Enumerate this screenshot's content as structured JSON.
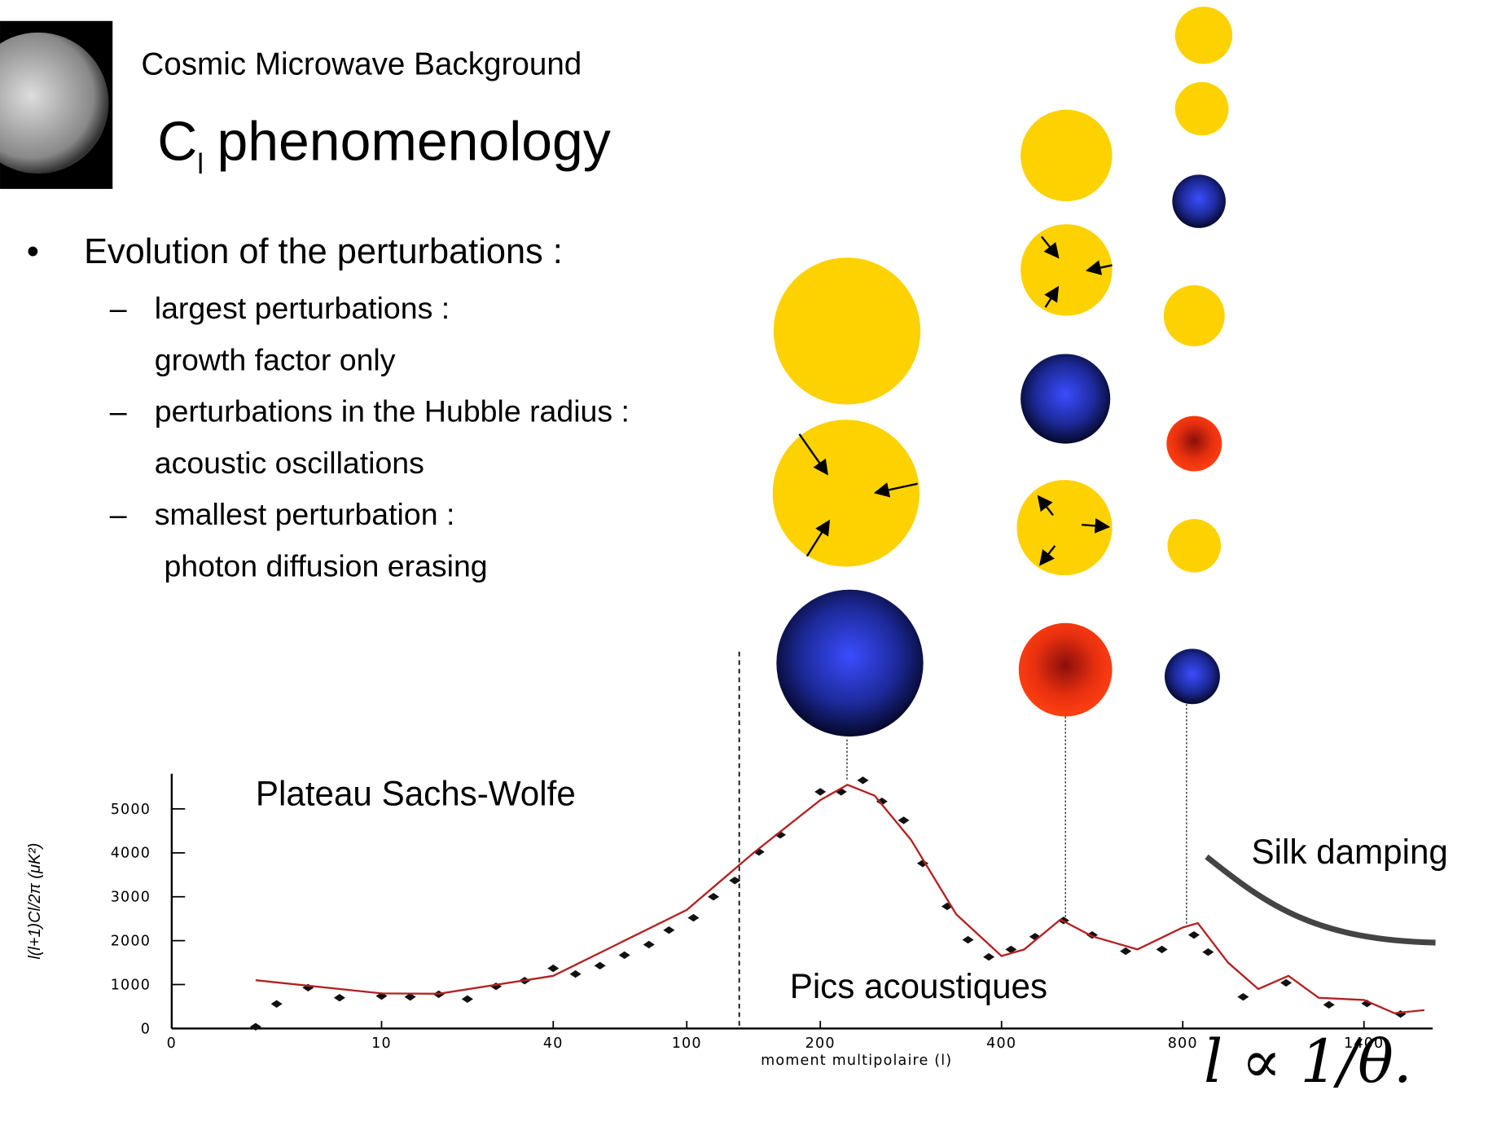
{
  "header": {
    "subtitle": "Cosmic Microwave Background",
    "title_main": "C",
    "title_sub": "l",
    "title_rest": "phenomenology"
  },
  "bullets": {
    "main": "Evolution of the perturbations :",
    "items": [
      [
        "largest perturbations :",
        "growth factor only"
      ],
      [
        "perturbations in the Hubble radius :",
        "acoustic oscillations"
      ],
      [
        "smallest perturbation :",
        "photon diffusion erasing"
      ]
    ]
  },
  "formula": "l ∝ 1/θ.",
  "chart_data": {
    "type": "scatter",
    "xlabel": "moment multipolaire (l)",
    "ylabel": "l(l+1)Cl/2π (μK²)",
    "annotations": [
      "Plateau Sachs-Wolfe",
      "Pics acoustiques",
      "Silk damping"
    ],
    "xlim": [
      0,
      1600
    ],
    "ylim": [
      0,
      5800
    ],
    "xticks": [
      0,
      10,
      40,
      100,
      200,
      400,
      800,
      1400
    ],
    "yticks": [
      0,
      1000,
      2000,
      3000,
      4000,
      5000
    ],
    "series": [
      {
        "mode": "markers",
        "color": "#111111",
        "x": [
          4,
          5,
          6.5,
          8,
          10,
          15,
          20,
          25,
          30,
          35,
          40,
          50,
          61,
          72,
          83,
          92,
          105,
          120,
          136,
          154,
          170,
          200,
          223,
          247,
          268,
          292,
          313,
          340,
          363,
          386,
          421,
          474,
          537,
          600,
          674,
          754,
          837,
          884,
          1000,
          1142,
          1284,
          1410,
          1521
        ],
        "values": [
          40,
          560,
          930,
          700,
          740,
          720,
          780,
          670,
          960,
          1090,
          1370,
          1240,
          1430,
          1670,
          1910,
          2240,
          2520,
          3000,
          3370,
          4020,
          4410,
          5390,
          5390,
          5650,
          5170,
          4740,
          3760,
          2780,
          2020,
          1630,
          1800,
          2090,
          2460,
          2130,
          1760,
          1800,
          2130,
          1740,
          720,
          1040,
          540,
          570,
          330
        ]
      },
      {
        "mode": "line",
        "color": "#b22222",
        "x": [
          4,
          10,
          20,
          40,
          100,
          150,
          200,
          230,
          260,
          300,
          350,
          400,
          450,
          530,
          600,
          700,
          800,
          850,
          950,
          1050,
          1150,
          1250,
          1400,
          1500,
          1600
        ],
        "values": [
          1100,
          800,
          790,
          1200,
          2700,
          4000,
          5200,
          5550,
          5300,
          4300,
          2600,
          1650,
          1800,
          2480,
          2100,
          1800,
          2300,
          2400,
          1500,
          900,
          1200,
          700,
          650,
          350,
          420
        ]
      }
    ]
  }
}
